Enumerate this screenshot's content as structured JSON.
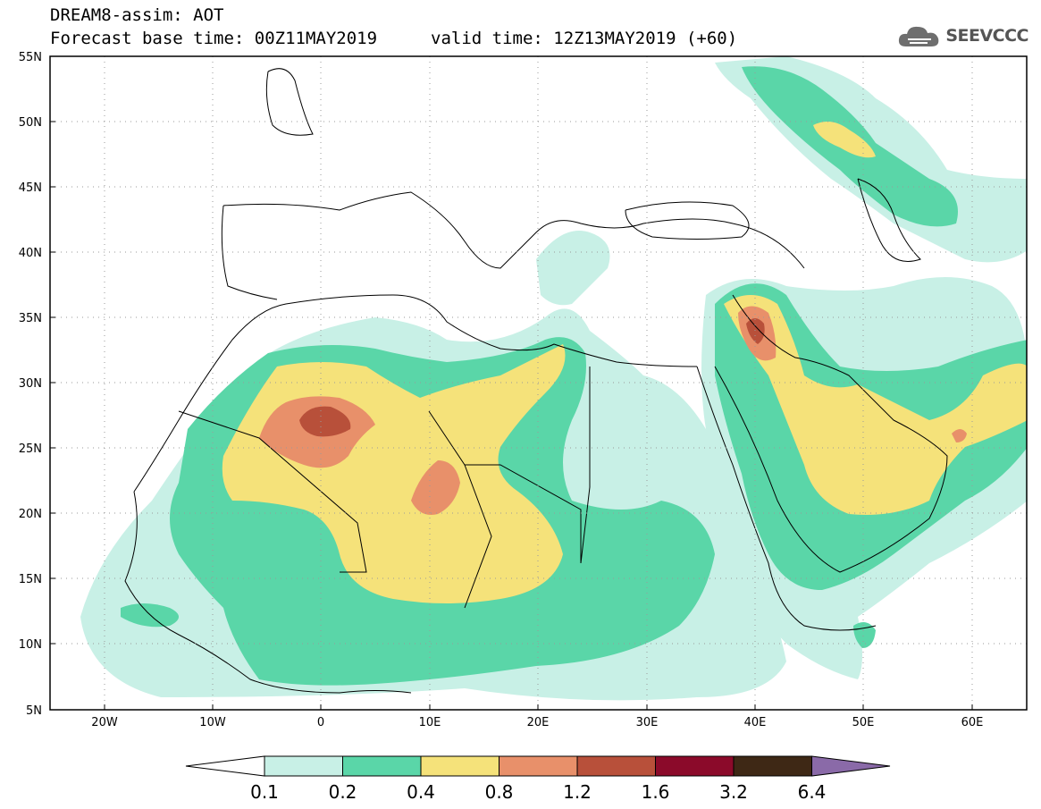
{
  "header": {
    "line1": "DREAM8-assim: AOT",
    "line2": "Forecast base time: 00Z11MAY2019",
    "line3": "valid time: 12Z13MAY2019 (+60)",
    "logo": "SEEVCCC"
  },
  "map": {
    "lon_range": [
      -25,
      65
    ],
    "lat_range": [
      5,
      55
    ],
    "lon_ticks": [
      "20W",
      "10W",
      "0",
      "10E",
      "20E",
      "30E",
      "40E",
      "50E",
      "60E"
    ],
    "lat_ticks": [
      "55N",
      "50N",
      "45N",
      "40N",
      "35N",
      "30N",
      "25N",
      "20N",
      "15N",
      "10N",
      "5N"
    ],
    "colors": {
      "c1": "#c8f0e6",
      "c2": "#5ad6a8",
      "c3": "#f5e27a",
      "c4": "#e8906a",
      "c5": "#b8503a",
      "c6": "#8b2030"
    }
  },
  "colorbar": {
    "levels": [
      "0.1",
      "0.2",
      "0.4",
      "0.8",
      "1.2",
      "1.6",
      "3.2",
      "6.4"
    ],
    "colors": [
      "#ffffff",
      "#c8f0e6",
      "#5ad6a8",
      "#f5e27a",
      "#e8906a",
      "#b8503a",
      "#8b0a2a",
      "#3e2815",
      "#8a6aa8"
    ]
  }
}
